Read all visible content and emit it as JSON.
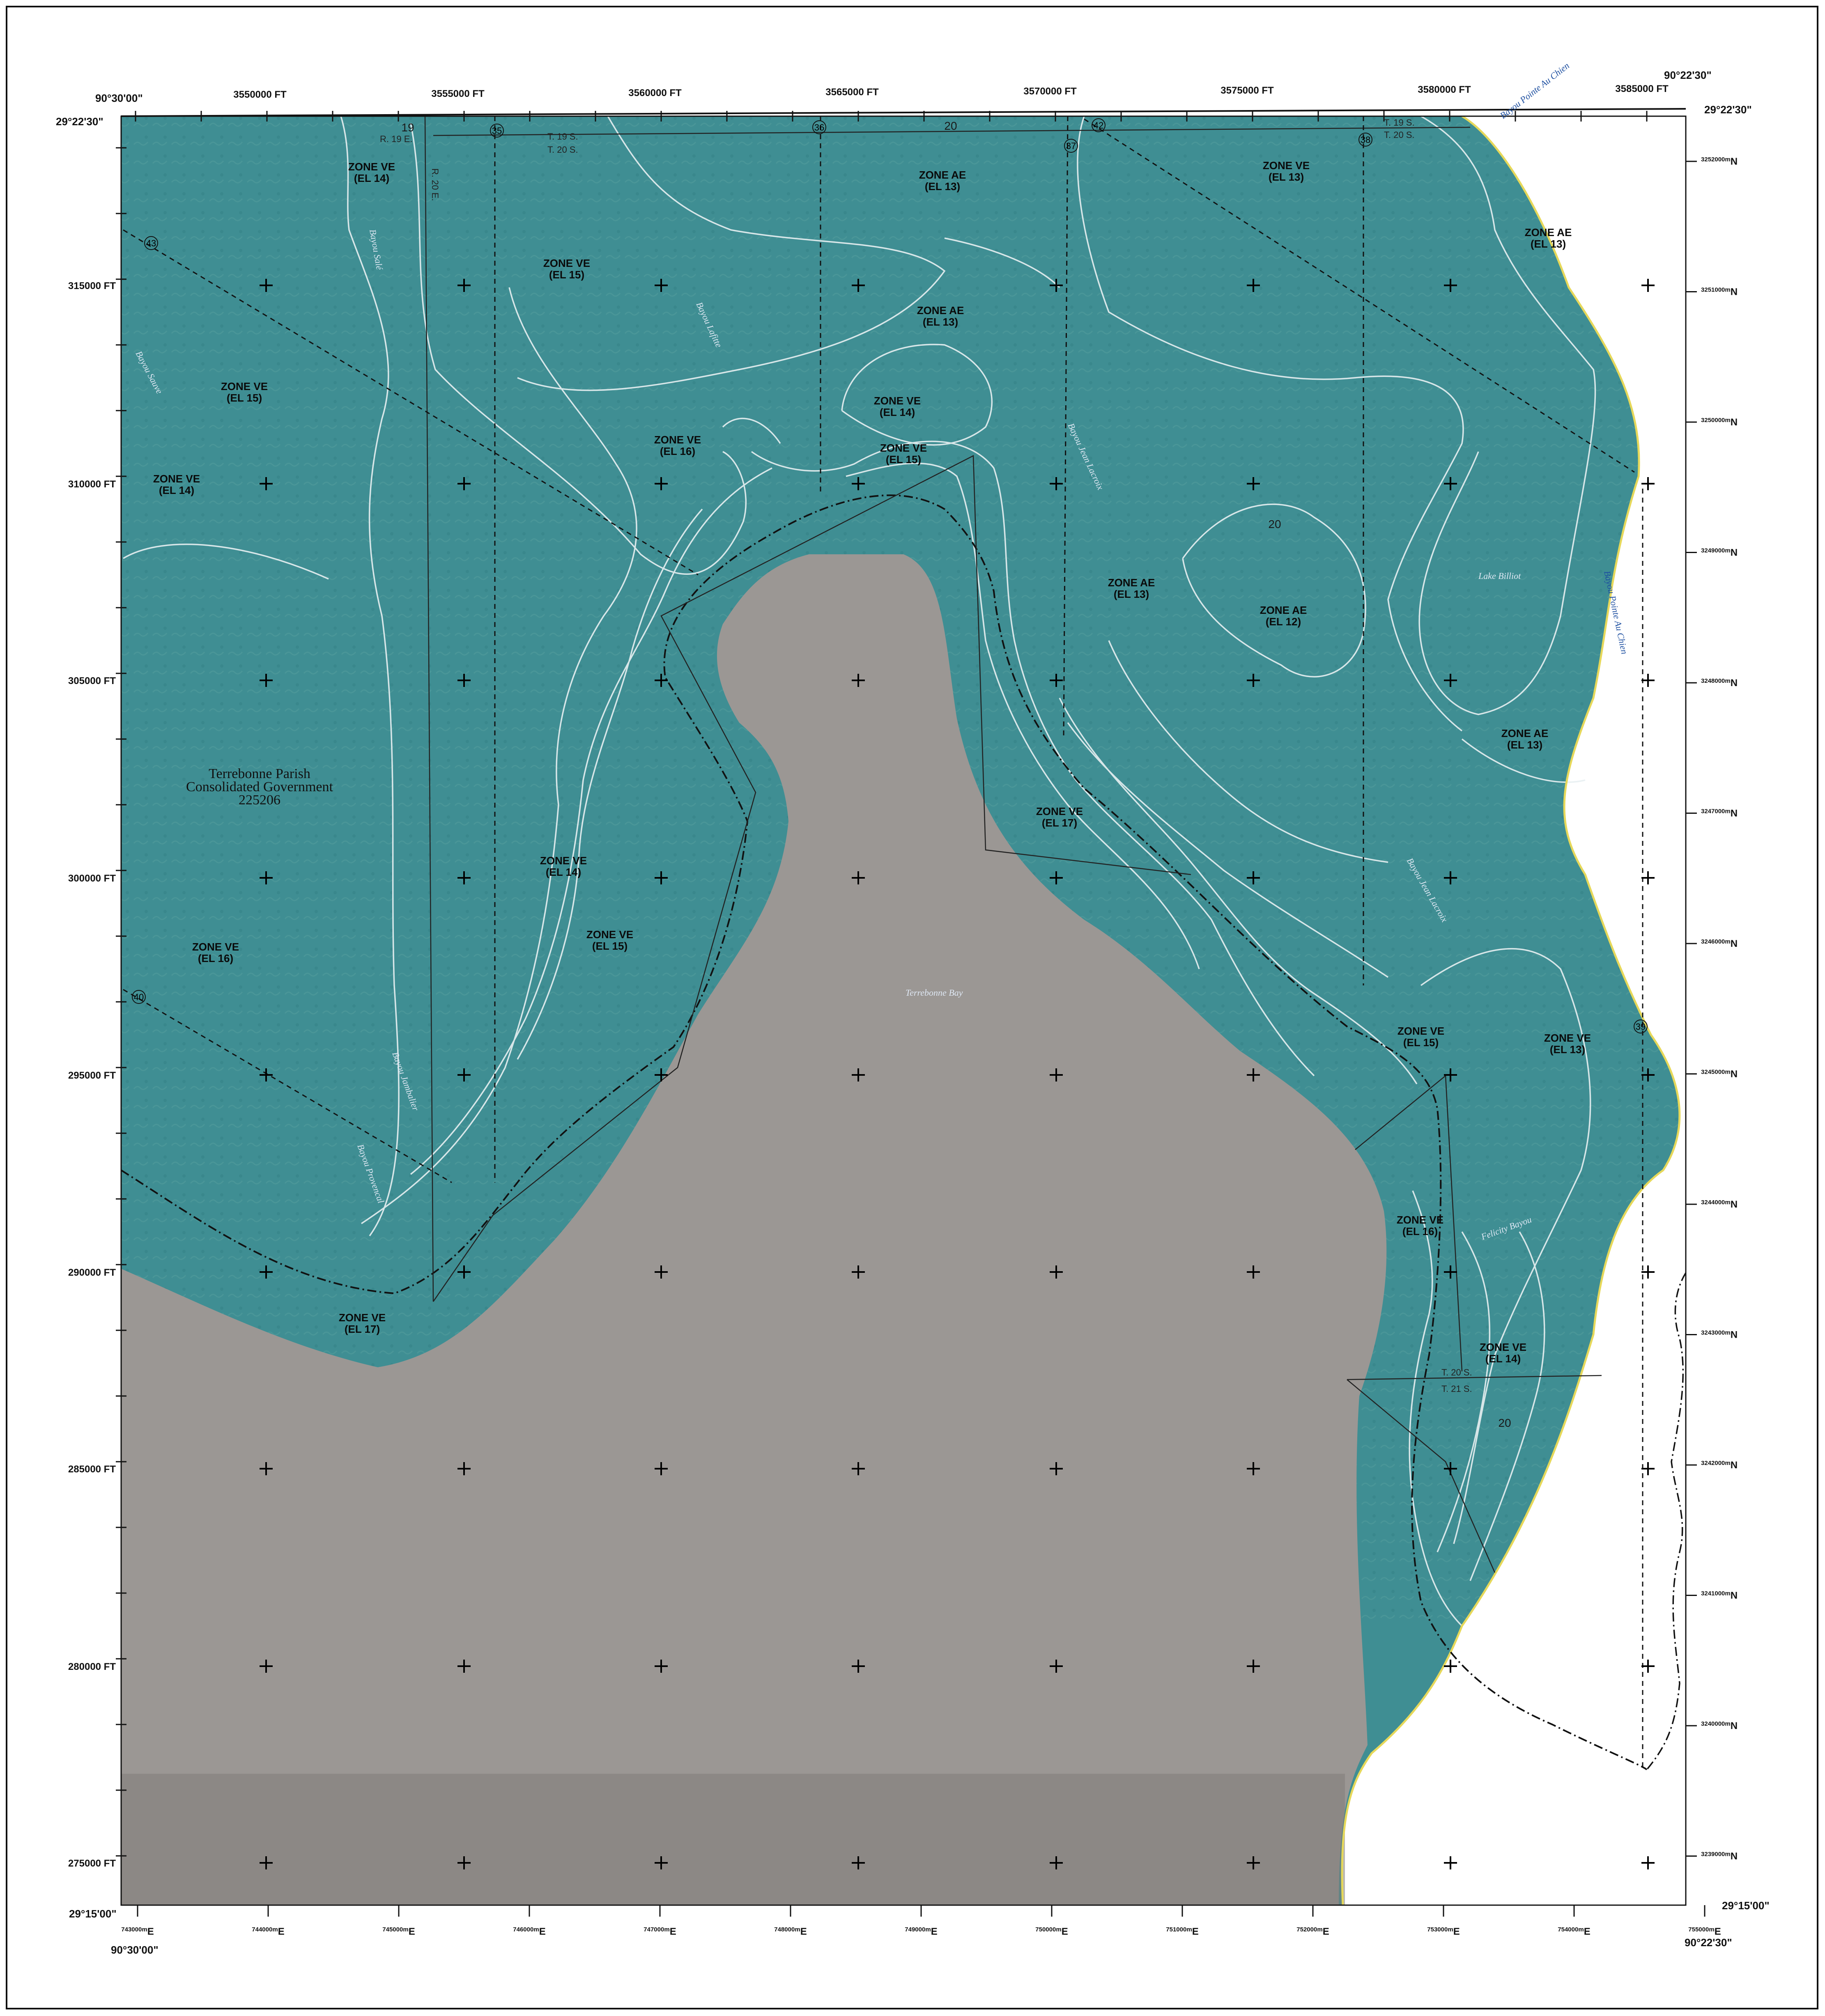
{
  "map": {
    "owner": {
      "line1": "Terrebonne Parish",
      "line2": "Consolidated Government",
      "line3": "225206"
    },
    "corners": {
      "top_left_lon": "90°30'00\"",
      "top_left_lat": "29°22'30\"",
      "top_right_lon": "90°22'30\"",
      "top_right_lat": "29°22'30\"",
      "bottom_left_lat": "29°15'00\"",
      "bottom_left_lon": "90°30'00\"",
      "bottom_right_lat": "29°15'00\"",
      "bottom_right_lon": "90°22'30\""
    },
    "top_eastings_ft": [
      "3550000 FT",
      "3555000 FT",
      "3560000 FT",
      "3565000 FT",
      "3570000 FT",
      "3575000 FT",
      "3580000 FT",
      "3585000 FT"
    ],
    "left_northings_ft": [
      "315000 FT",
      "310000 FT",
      "305000 FT",
      "300000 FT",
      "295000 FT",
      "290000 FT",
      "285000 FT",
      "280000 FT",
      "275000 FT"
    ],
    "right_utm_north": [
      {
        "prefix": "32",
        "sup": "52000m",
        "suffix": "N"
      },
      {
        "prefix": "32",
        "sup": "51000m",
        "suffix": "N"
      },
      {
        "prefix": "32",
        "sup": "50000m",
        "suffix": "N"
      },
      {
        "prefix": "32",
        "sup": "49000m",
        "suffix": "N"
      },
      {
        "prefix": "32",
        "sup": "48000m",
        "suffix": "N"
      },
      {
        "prefix": "32",
        "sup": "47000m",
        "suffix": "N"
      },
      {
        "prefix": "32",
        "sup": "46000m",
        "suffix": "N"
      },
      {
        "prefix": "32",
        "sup": "45000m",
        "suffix": "N"
      },
      {
        "prefix": "32",
        "sup": "44000m",
        "suffix": "N"
      },
      {
        "prefix": "32",
        "sup": "43000m",
        "suffix": "N"
      },
      {
        "prefix": "32",
        "sup": "42000m",
        "suffix": "N"
      },
      {
        "prefix": "32",
        "sup": "41000m",
        "suffix": "N"
      },
      {
        "prefix": "32",
        "sup": "40000m",
        "suffix": "N"
      },
      {
        "prefix": "32",
        "sup": "39000m",
        "suffix": "N"
      }
    ],
    "bottom_utm_east": [
      {
        "prefix": "7",
        "sup": "43000m",
        "suffix": "E"
      },
      {
        "prefix": "7",
        "sup": "44000m",
        "suffix": "E"
      },
      {
        "prefix": "7",
        "sup": "45000m",
        "suffix": "E"
      },
      {
        "prefix": "7",
        "sup": "46000m",
        "suffix": "E"
      },
      {
        "prefix": "7",
        "sup": "47000m",
        "suffix": "E"
      },
      {
        "prefix": "7",
        "sup": "48000m",
        "suffix": "E"
      },
      {
        "prefix": "7",
        "sup": "49000m",
        "suffix": "E"
      },
      {
        "prefix": "7",
        "sup": "50000m",
        "suffix": "E"
      },
      {
        "prefix": "7",
        "sup": "51000m",
        "suffix": "E"
      },
      {
        "prefix": "7",
        "sup": "52000m",
        "suffix": "E"
      },
      {
        "prefix": "7",
        "sup": "53000m",
        "suffix": "E"
      },
      {
        "prefix": "7",
        "sup": "54000m",
        "suffix": "E"
      },
      {
        "prefix": "7",
        "sup": "55000m",
        "suffix": "E"
      }
    ],
    "zones": [
      {
        "zone": "ZONE VE",
        "el": "(EL 14)"
      },
      {
        "zone": "ZONE VE",
        "el": "(EL 15)"
      },
      {
        "zone": "ZONE AE",
        "el": "(EL 13)"
      },
      {
        "zone": "ZONE AE",
        "el": "(EL 13)"
      },
      {
        "zone": "ZONE AE",
        "el": "(EL 13)"
      },
      {
        "zone": "ZONE VE",
        "el": "(EL 13)"
      },
      {
        "zone": "ZONE VE",
        "el": "(EL 15)"
      },
      {
        "zone": "ZONE VE",
        "el": "(EL 14)"
      },
      {
        "zone": "ZONE VE",
        "el": "(EL 14)"
      },
      {
        "zone": "ZONE VE",
        "el": "(EL 16)"
      },
      {
        "zone": "ZONE VE",
        "el": "(EL 15)"
      },
      {
        "zone": "ZONE AE",
        "el": "(EL 13)"
      },
      {
        "zone": "ZONE AE",
        "el": "(EL 12)"
      },
      {
        "zone": "ZONE AE",
        "el": "(EL 13)"
      },
      {
        "zone": "ZONE VE",
        "el": "(EL 17)"
      },
      {
        "zone": "ZONE VE",
        "el": "(EL 14)"
      },
      {
        "zone": "ZONE VE",
        "el": "(EL 15)"
      },
      {
        "zone": "ZONE VE",
        "el": "(EL 16)"
      },
      {
        "zone": "ZONE VE",
        "el": "(EL 15)"
      },
      {
        "zone": "ZONE VE",
        "el": "(EL 13)"
      },
      {
        "zone": "ZONE VE",
        "el": "(EL 16)"
      },
      {
        "zone": "ZONE VE",
        "el": "(EL 14)"
      },
      {
        "zone": "ZONE VE",
        "el": "(EL 17)"
      }
    ],
    "water_labels": [
      "Bayou Pointe Au Chien",
      "Bayou Pointe Au Chien",
      "Lake Billiot",
      "Terrebonne Bay",
      "Bayou Jean Lacroix",
      "Bayou Jean Lacroix",
      "Bayou Lafitte",
      "Bayou Sauve",
      "Bayou Salé",
      "Bayou Jambalier",
      "Bayou Provencal",
      "Felicity Bayou"
    ],
    "township": {
      "r19e": "R. 19 E.",
      "r20e": "R. 20 E.",
      "t19s_a": "T. 19 S.",
      "t20s_a": "T. 20 S.",
      "t19s_b": "T. 19 S.",
      "t20s_b": "T. 20 S.",
      "t20s_c": "T. 20 S.",
      "t21s": "T. 21 S."
    },
    "section_numbers": [
      "19",
      "20",
      "20",
      "20"
    ],
    "section_circles": [
      "43",
      "40",
      "35",
      "36",
      "37",
      "42",
      "38",
      "39"
    ],
    "colors": {
      "zone_fill": "#3f8e93",
      "bay_fill": "#9b9794",
      "contour": "#e8f0f2",
      "shoreline": "#e6d85a",
      "frame": "#111111"
    }
  }
}
